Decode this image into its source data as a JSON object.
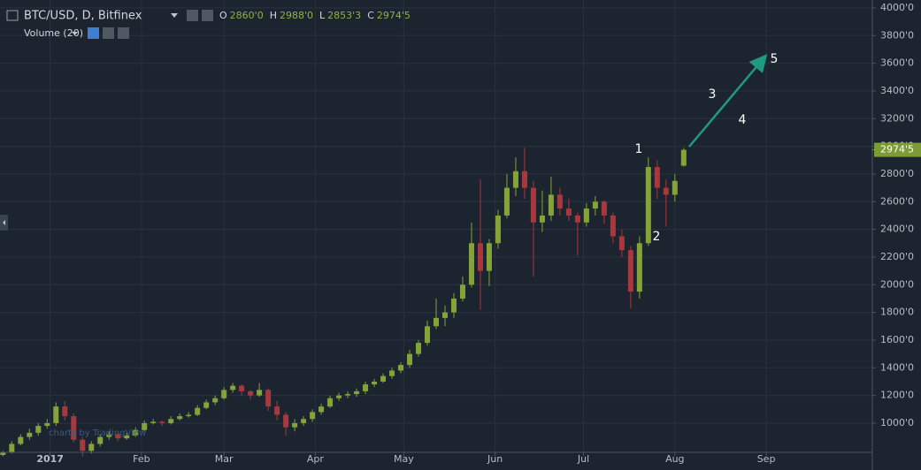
{
  "chart_data": {
    "type": "candlestick",
    "header": {
      "symbol": "BTC/USD, D, Bitfinex",
      "fields": [
        {
          "key": "O",
          "value": "2860'0"
        },
        {
          "key": "H",
          "value": "2988'0"
        },
        {
          "key": "L",
          "value": "2853'3"
        },
        {
          "key": "C",
          "value": "2974'5"
        }
      ],
      "indicator": "Volume (20)"
    },
    "watermark": "charts by TradingView",
    "up_color": "#84a43a",
    "down_color": "#a7393e",
    "grid": true,
    "x": [
      -16,
      -13,
      -10,
      -7,
      -4,
      -1,
      2,
      5,
      8,
      11,
      14,
      17,
      20,
      23,
      26,
      29,
      32,
      35,
      38,
      41,
      44,
      47,
      50,
      53,
      56,
      59,
      62,
      65,
      68,
      71,
      74,
      77,
      80,
      83,
      86,
      89,
      92,
      95,
      98,
      101,
      104,
      107,
      110,
      113,
      116,
      119,
      122,
      125,
      128,
      131,
      134,
      137,
      140,
      143,
      146,
      149,
      152,
      155,
      158,
      161,
      164,
      167,
      170,
      173,
      176,
      179,
      182,
      185,
      188,
      191,
      194,
      197,
      200,
      203,
      206,
      209,
      212,
      215
    ],
    "ohlc": [
      [
        770,
        800,
        760,
        790
      ],
      [
        790,
        870,
        780,
        850
      ],
      [
        850,
        920,
        840,
        900
      ],
      [
        900,
        960,
        880,
        930
      ],
      [
        930,
        1000,
        910,
        980
      ],
      [
        980,
        1030,
        960,
        1000
      ],
      [
        1000,
        1150,
        980,
        1120
      ],
      [
        1120,
        1160,
        1020,
        1050
      ],
      [
        1050,
        1070,
        860,
        880
      ],
      [
        880,
        900,
        760,
        800
      ],
      [
        800,
        870,
        780,
        850
      ],
      [
        850,
        920,
        830,
        900
      ],
      [
        900,
        940,
        880,
        920
      ],
      [
        920,
        930,
        870,
        890
      ],
      [
        890,
        930,
        880,
        910
      ],
      [
        910,
        970,
        900,
        950
      ],
      [
        950,
        1020,
        940,
        1000
      ],
      [
        1000,
        1030,
        990,
        1010
      ],
      [
        1010,
        1020,
        980,
        1000
      ],
      [
        1000,
        1050,
        990,
        1030
      ],
      [
        1030,
        1070,
        1020,
        1050
      ],
      [
        1050,
        1080,
        1040,
        1060
      ],
      [
        1060,
        1130,
        1050,
        1110
      ],
      [
        1110,
        1170,
        1100,
        1150
      ],
      [
        1150,
        1200,
        1130,
        1180
      ],
      [
        1180,
        1260,
        1170,
        1240
      ],
      [
        1240,
        1290,
        1220,
        1270
      ],
      [
        1270,
        1280,
        1200,
        1230
      ],
      [
        1230,
        1240,
        1170,
        1200
      ],
      [
        1200,
        1290,
        1190,
        1240
      ],
      [
        1240,
        1250,
        1090,
        1120
      ],
      [
        1120,
        1160,
        1020,
        1060
      ],
      [
        1060,
        1080,
        910,
        970
      ],
      [
        970,
        1030,
        940,
        1000
      ],
      [
        1000,
        1050,
        980,
        1030
      ],
      [
        1030,
        1100,
        1010,
        1080
      ],
      [
        1080,
        1140,
        1060,
        1120
      ],
      [
        1120,
        1200,
        1110,
        1180
      ],
      [
        1180,
        1220,
        1160,
        1200
      ],
      [
        1200,
        1230,
        1180,
        1210
      ],
      [
        1210,
        1250,
        1190,
        1230
      ],
      [
        1230,
        1300,
        1210,
        1280
      ],
      [
        1280,
        1320,
        1260,
        1300
      ],
      [
        1300,
        1360,
        1290,
        1340
      ],
      [
        1340,
        1400,
        1320,
        1380
      ],
      [
        1380,
        1440,
        1360,
        1420
      ],
      [
        1420,
        1530,
        1400,
        1500
      ],
      [
        1500,
        1600,
        1480,
        1580
      ],
      [
        1580,
        1740,
        1560,
        1700
      ],
      [
        1700,
        1900,
        1680,
        1760
      ],
      [
        1760,
        1850,
        1700,
        1800
      ],
      [
        1800,
        1940,
        1760,
        1900
      ],
      [
        1900,
        2060,
        1880,
        2000
      ],
      [
        2000,
        2450,
        1980,
        2300
      ],
      [
        2300,
        2760,
        1820,
        2100
      ],
      [
        2100,
        2330,
        1990,
        2300
      ],
      [
        2300,
        2540,
        2260,
        2500
      ],
      [
        2500,
        2800,
        2480,
        2700
      ],
      [
        2700,
        2920,
        2640,
        2820
      ],
      [
        2820,
        2990,
        2620,
        2700
      ],
      [
        2700,
        2750,
        2060,
        2450
      ],
      [
        2450,
        2680,
        2380,
        2500
      ],
      [
        2500,
        2780,
        2460,
        2650
      ],
      [
        2650,
        2700,
        2500,
        2550
      ],
      [
        2550,
        2620,
        2460,
        2500
      ],
      [
        2500,
        2520,
        2210,
        2450
      ],
      [
        2450,
        2590,
        2420,
        2550
      ],
      [
        2550,
        2640,
        2500,
        2600
      ],
      [
        2600,
        2610,
        2440,
        2500
      ],
      [
        2500,
        2520,
        2300,
        2350
      ],
      [
        2350,
        2400,
        2200,
        2250
      ],
      [
        2250,
        2280,
        1830,
        1950
      ],
      [
        1950,
        2350,
        1900,
        2300
      ],
      [
        2300,
        2920,
        2280,
        2850
      ],
      [
        2850,
        2900,
        2620,
        2700
      ],
      [
        2700,
        2760,
        2420,
        2650
      ],
      [
        2650,
        2800,
        2600,
        2750
      ],
      [
        2860,
        2988,
        2853.3,
        2974.5
      ]
    ],
    "xlim": [
      -17,
      279
    ],
    "xticks": [
      {
        "value": 0,
        "label": "2017"
      },
      {
        "value": 31,
        "label": "Feb"
      },
      {
        "value": 59,
        "label": "Mar"
      },
      {
        "value": 90,
        "label": "Apr"
      },
      {
        "value": 120,
        "label": "May"
      },
      {
        "value": 151,
        "label": "Jun"
      },
      {
        "value": 181,
        "label": "Jul"
      },
      {
        "value": 212,
        "label": "Aug"
      },
      {
        "value": 243,
        "label": "Sep"
      }
    ],
    "ylim": [
      789,
      4057
    ],
    "yticks": [
      {
        "value": 1000,
        "label": "1000'0"
      },
      {
        "value": 1200,
        "label": "1200'0"
      },
      {
        "value": 1400,
        "label": "1400'0"
      },
      {
        "value": 1600,
        "label": "1600'0"
      },
      {
        "value": 1800,
        "label": "1800'0"
      },
      {
        "value": 2000,
        "label": "2000'0"
      },
      {
        "value": 2200,
        "label": "2200'0"
      },
      {
        "value": 2400,
        "label": "2400'0"
      },
      {
        "value": 2600,
        "label": "2600'0"
      },
      {
        "value": 2800,
        "label": "2800'0"
      },
      {
        "value": 3000,
        "label": "3000'0"
      },
      {
        "value": 3200,
        "label": "3200'0"
      },
      {
        "value": 3400,
        "label": "3400'0"
      },
      {
        "value": 3600,
        "label": "3600'0"
      },
      {
        "value": 3800,
        "label": "3800'0"
      },
      {
        "value": 4000,
        "label": "4000'0"
      }
    ],
    "last_price": {
      "value": 2974.5,
      "label": "2974'5",
      "color": "#7b9b36"
    },
    "annotations": [
      "1",
      "2",
      "3",
      "4",
      "5"
    ],
    "arrow_color": "#1f9a80"
  }
}
